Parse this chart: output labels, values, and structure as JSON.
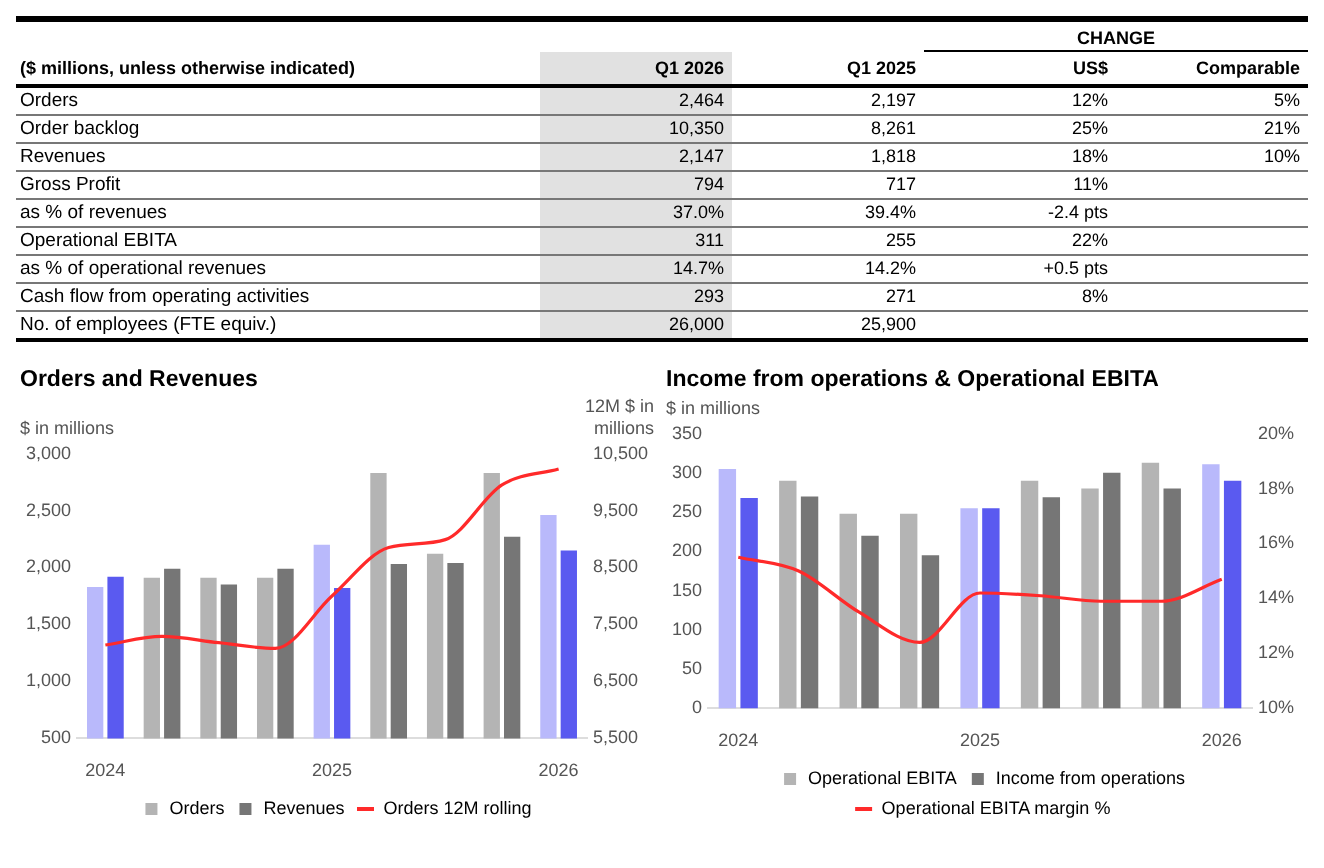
{
  "chart_data": [
    {
      "type": "other",
      "title": "($ millions, unless otherwise indicated)",
      "annotations": [
        "CHANGE"
      ],
      "categories": [
        "Q1 2026",
        "Q1 2025",
        "US$",
        "Comparable"
      ],
      "y_categories": [
        "Orders",
        "Order backlog",
        "Revenues",
        "Gross Profit",
        "as % of revenues",
        "Operational EBITA",
        "as % of operational revenues",
        "Cash flow from operating activities",
        "No. of employees (FTE equiv.)"
      ],
      "cell_labels": [
        [
          "2,464",
          "2,197",
          "12%",
          "5%"
        ],
        [
          "10,350",
          "8,261",
          "25%",
          "21%"
        ],
        [
          "2,147",
          "1,818",
          "18%",
          "10%"
        ],
        [
          "794",
          "717",
          "11%",
          null
        ],
        [
          "37.0%",
          "39.4%",
          "-2.4 pts",
          null
        ],
        [
          "311",
          "255",
          "22%",
          null
        ],
        [
          "14.7%",
          "14.2%",
          "+0.5 pts",
          null
        ],
        [
          "293",
          "271",
          "8%",
          null
        ],
        [
          "26,000",
          "25,900",
          null,
          null
        ]
      ]
    },
    {
      "type": "bar",
      "title": "Orders and Revenues",
      "ylabel": "$ in millions",
      "y2label": "12M $ in millions",
      "categories": [
        "2024",
        null,
        null,
        null,
        "2025",
        null,
        null,
        null,
        "2026"
      ],
      "series": [
        {
          "name": "Orders",
          "color": "#b4b4b4",
          "colors": [
            "#b9b9fb",
            "#b4b4b4",
            "#b4b4b4",
            "#b4b4b4",
            "#b9b9fb",
            "#b4b4b4",
            "#b4b4b4",
            "#b4b4b4",
            "#b9b9fb"
          ],
          "values": [
            1830,
            1910,
            1910,
            1910,
            2200,
            2830,
            2120,
            2830,
            2460
          ]
        },
        {
          "name": "Revenues",
          "color": "#767676",
          "colors": [
            "#5a5af0",
            "#767676",
            "#767676",
            "#767676",
            "#5a5af0",
            "#767676",
            "#767676",
            "#767676",
            "#5a5af0"
          ],
          "values": [
            1920,
            1990,
            1850,
            1990,
            1820,
            2030,
            2040,
            2270,
            2150
          ]
        },
        {
          "name": "Orders 12M rolling",
          "type": "line",
          "axis": "y2",
          "color": "#ff2a2a",
          "values": [
            7140,
            7290,
            7180,
            7080,
            8000,
            8850,
            8990,
            9950,
            10230
          ]
        }
      ],
      "ylim": [
        500,
        3000
      ],
      "yticks": [
        {
          "value": 500,
          "label": "500"
        },
        {
          "value": 1000,
          "label": "1,000"
        },
        {
          "value": 1500,
          "label": "1,500"
        },
        {
          "value": 2000,
          "label": "2,000"
        },
        {
          "value": 2500,
          "label": "2,500"
        },
        {
          "value": 3000,
          "label": "3,000"
        }
      ],
      "y2lim": [
        5500,
        10500
      ],
      "y2ticks": [
        {
          "value": 5500,
          "label": "5,500"
        },
        {
          "value": 6500,
          "label": "6,500"
        },
        {
          "value": 7500,
          "label": "7,500"
        },
        {
          "value": 8500,
          "label": "8,500"
        },
        {
          "value": 9500,
          "label": "9,500"
        },
        {
          "value": 10500,
          "label": "10,500"
        }
      ],
      "legend": "bottom",
      "marker": "none"
    },
    {
      "type": "bar",
      "title": "Income from operations & Operational EBITA",
      "ylabel": "$ in millions",
      "categories": [
        "2024",
        null,
        null,
        null,
        "2025",
        null,
        null,
        null,
        "2026"
      ],
      "series": [
        {
          "name": "Operational EBITA",
          "color": "#b4b4b4",
          "colors": [
            "#b9b9fb",
            "#b4b4b4",
            "#b4b4b4",
            "#b4b4b4",
            "#b9b9fb",
            "#b4b4b4",
            "#b4b4b4",
            "#b4b4b4",
            "#b9b9fb"
          ],
          "values": [
            305,
            290,
            248,
            248,
            255,
            290,
            280,
            313,
            311
          ]
        },
        {
          "name": "Income from operations",
          "color": "#767676",
          "colors": [
            "#5a5af0",
            "#767676",
            "#767676",
            "#767676",
            "#5a5af0",
            "#767676",
            "#767676",
            "#767676",
            "#5a5af0"
          ],
          "values": [
            268,
            270,
            220,
            195,
            255,
            269,
            300,
            280,
            290
          ]
        },
        {
          "name": "Operational EBITA margin %",
          "type": "line",
          "axis": "y2",
          "color": "#ff2a2a",
          "values": [
            15.5,
            15.0,
            13.5,
            12.4,
            14.2,
            14.1,
            13.9,
            13.9,
            14.7
          ]
        }
      ],
      "ylim": [
        0,
        350
      ],
      "yticks": [
        0,
        50,
        100,
        150,
        200,
        250,
        300,
        350
      ],
      "y2lim": [
        10,
        20
      ],
      "y2ticks": [
        {
          "value": 10,
          "label": "10%"
        },
        {
          "value": 12,
          "label": "12%"
        },
        {
          "value": 14,
          "label": "14%"
        },
        {
          "value": 16,
          "label": "16%"
        },
        {
          "value": 18,
          "label": "18%"
        },
        {
          "value": 20,
          "label": "20%"
        }
      ],
      "legend": "bottom",
      "marker": "none"
    }
  ]
}
